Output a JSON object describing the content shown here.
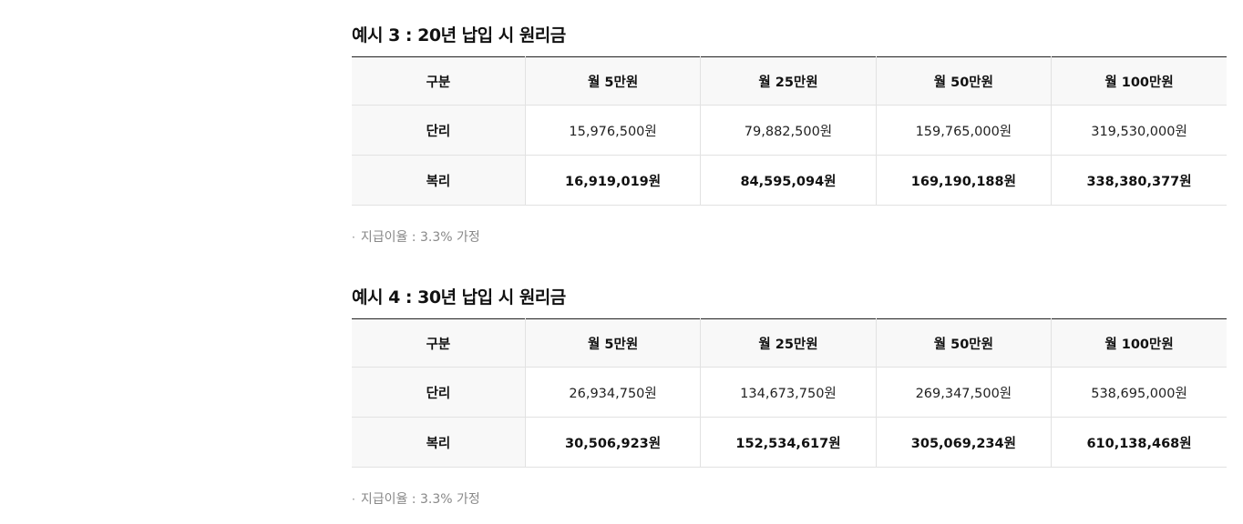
{
  "sections": [
    {
      "title": "예시 3 : 20년 납입 시 원리금",
      "headers": [
        "구분",
        "월 5만원",
        "월 25만원",
        "월 50만원",
        "월 100만원"
      ],
      "rows": [
        {
          "label": "단리",
          "values": [
            "15,976,500원",
            "79,882,500원",
            "159,765,000원",
            "319,530,000원"
          ]
        },
        {
          "label": "복리",
          "values": [
            "16,919,019원",
            "84,595,094원",
            "169,190,188원",
            "338,380,377원"
          ]
        }
      ],
      "note": "지급이율 : 3.3% 가정"
    },
    {
      "title": "예시 4 : 30년 납입 시 원리금",
      "headers": [
        "구분",
        "월 5만원",
        "월 25만원",
        "월 50만원",
        "월 100만원"
      ],
      "rows": [
        {
          "label": "단리",
          "values": [
            "26,934,750원",
            "134,673,750원",
            "269,347,500원",
            "538,695,000원"
          ]
        },
        {
          "label": "복리",
          "values": [
            "30,506,923원",
            "152,534,617원",
            "305,069,234원",
            "610,138,468원"
          ]
        }
      ],
      "note": "지급이율 : 3.3% 가정"
    }
  ],
  "note_bullet": "·"
}
